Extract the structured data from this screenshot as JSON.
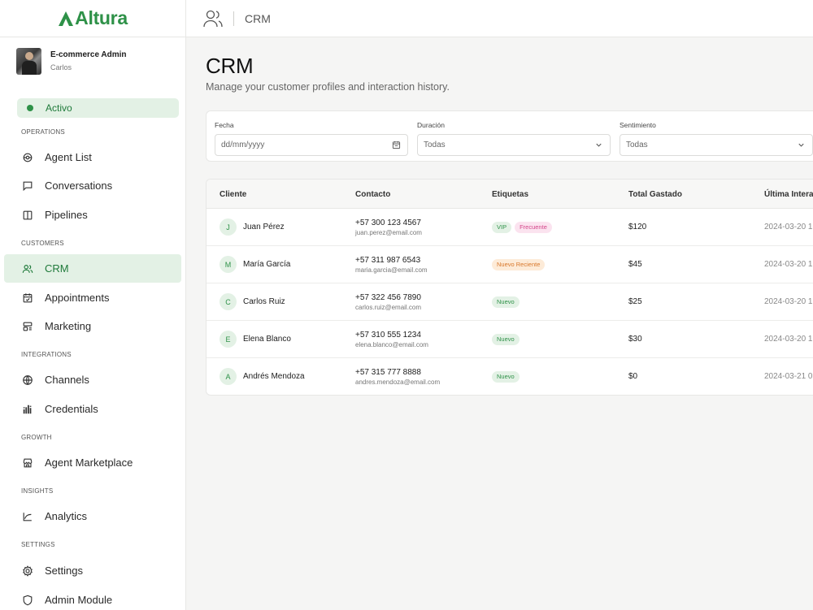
{
  "brand": {
    "name": "Altura",
    "color": "#2e9148"
  },
  "profile": {
    "role": "E-commerce Admin",
    "name": "Carlos"
  },
  "status": {
    "label": "Activo"
  },
  "sections": {
    "operations": "OPERATIONS",
    "customers": "CUSTOMERS",
    "integrations": "INTEGRATIONS",
    "growth": "GROWTH",
    "insights": "INSIGHTS",
    "settings": "SETTINGS"
  },
  "nav": {
    "agent_list": "Agent List",
    "conversations": "Conversations",
    "pipelines": "Pipelines",
    "crm": "CRM",
    "appointments": "Appointments",
    "marketing": "Marketing",
    "channels": "Channels",
    "credentials": "Credentials",
    "agent_marketplace": "Agent Marketplace",
    "analytics": "Analytics",
    "settings": "Settings",
    "admin_module": "Admin Module"
  },
  "topbar": {
    "title": "CRM",
    "icon": "users-icon"
  },
  "page": {
    "title": "CRM",
    "subtitle": "Manage your customer profiles and interaction history."
  },
  "filters": {
    "fecha": {
      "label": "Fecha",
      "placeholder": "dd/mm/yyyy"
    },
    "duracion": {
      "label": "Duración",
      "value": "Todas"
    },
    "sentimiento": {
      "label": "Sentimiento",
      "value": "Todas"
    }
  },
  "table": {
    "headers": {
      "cliente": "Cliente",
      "contacto": "Contacto",
      "etiquetas": "Etiquetas",
      "total": "Total Gastado",
      "ultima": "Última Intera"
    },
    "rows": [
      {
        "initial": "J",
        "name": "Juan Pérez",
        "phone": "+57 300 123 4567",
        "email": "juan.perez@email.com",
        "tags": [
          "VIP",
          "Frecuente"
        ],
        "total": "$120",
        "date": "2024-03-20 1"
      },
      {
        "initial": "M",
        "name": "María García",
        "phone": "+57 311 987 6543",
        "email": "maria.garcia@email.com",
        "tags": [
          "Nuevo Reciente"
        ],
        "total": "$45",
        "date": "2024-03-20 1"
      },
      {
        "initial": "C",
        "name": "Carlos Ruiz",
        "phone": "+57 322 456 7890",
        "email": "carlos.ruiz@email.com",
        "tags": [
          "Nuevo"
        ],
        "total": "$25",
        "date": "2024-03-20 1"
      },
      {
        "initial": "E",
        "name": "Elena Blanco",
        "phone": "+57 310 555 1234",
        "email": "elena.blanco@email.com",
        "tags": [
          "Nuevo"
        ],
        "total": "$30",
        "date": "2024-03-20 1"
      },
      {
        "initial": "A",
        "name": "Andrés Mendoza",
        "phone": "+57 315 777 8888",
        "email": "andres.mendoza@email.com",
        "tags": [
          "Nuevo"
        ],
        "total": "$0",
        "date": "2024-03-21 0"
      }
    ]
  },
  "tag_colors": {
    "VIP": {
      "bg": "#e3f1e5",
      "fg": "#2e9148"
    },
    "Frecuente": {
      "bg": "#fbe3ef",
      "fg": "#d4468a"
    },
    "Nuevo Reciente": {
      "bg": "#fdebd8",
      "fg": "#d8772a"
    },
    "Nuevo": {
      "bg": "#e3f1e5",
      "fg": "#2e9148"
    }
  }
}
